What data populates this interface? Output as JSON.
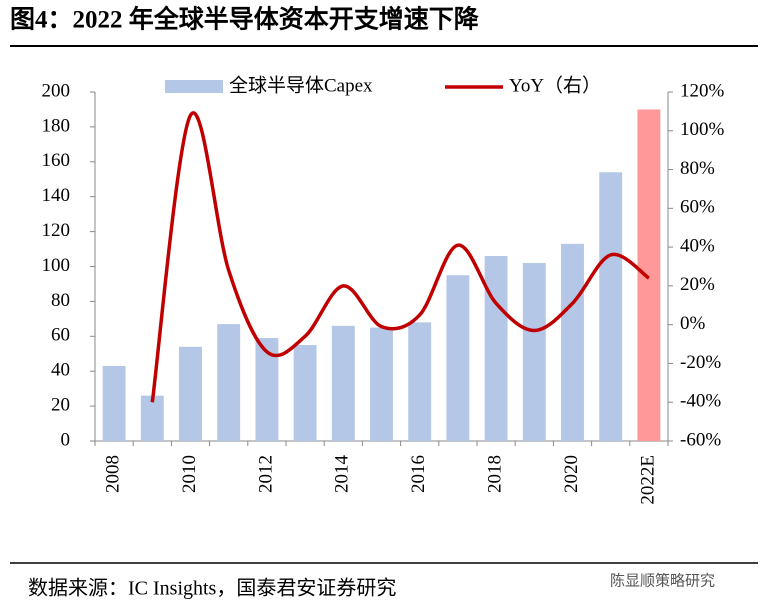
{
  "chart_data": {
    "type": "bar-line",
    "title": "图4：2022 年全球半导体资本开支增速下降",
    "source": "数据来源：IC Insights，国泰君安证券研究",
    "watermark": "陈显顺策略研究",
    "categories": [
      "2008",
      null,
      "2010",
      null,
      "2012",
      null,
      "2014",
      null,
      "2016",
      null,
      "2018",
      null,
      "2020",
      null,
      "2022E"
    ],
    "series": [
      {
        "name": "全球半导体Capex",
        "type": "bar",
        "color": "#b4c7e7",
        "colors": [
          "#b4c7e7",
          "#b4c7e7",
          "#b4c7e7",
          "#b4c7e7",
          "#b4c7e7",
          "#b4c7e7",
          "#b4c7e7",
          "#b4c7e7",
          "#b4c7e7",
          "#b4c7e7",
          "#b4c7e7",
          "#b4c7e7",
          "#b4c7e7",
          "#b4c7e7",
          "#ff9999"
        ],
        "values": [
          43,
          26,
          54,
          67,
          59,
          55,
          66,
          65,
          68,
          95,
          106,
          102,
          113,
          154,
          190
        ]
      },
      {
        "name": "YoY（右）",
        "type": "line",
        "axis": "y2",
        "color": "#c00000",
        "values": [
          null,
          -40,
          108,
          28,
          -14,
          -6,
          20,
          -1,
          5,
          41,
          11,
          -3,
          11,
          36,
          24
        ]
      }
    ],
    "ylim": [
      0,
      200
    ],
    "yticks": [
      0,
      20,
      40,
      60,
      80,
      100,
      120,
      140,
      160,
      180,
      200
    ],
    "y2lim": [
      -60,
      120
    ],
    "y2ticks": [
      {
        "value": -60,
        "label": "-60%"
      },
      {
        "value": -40,
        "label": "-40%"
      },
      {
        "value": -20,
        "label": "-20%"
      },
      {
        "value": 0,
        "label": "0%"
      },
      {
        "value": 20,
        "label": "20%"
      },
      {
        "value": 40,
        "label": "40%"
      },
      {
        "value": 60,
        "label": "60%"
      },
      {
        "value": 80,
        "label": "80%"
      },
      {
        "value": 100,
        "label": "100%"
      },
      {
        "value": 120,
        "label": "120%"
      }
    ],
    "legend": "top"
  }
}
